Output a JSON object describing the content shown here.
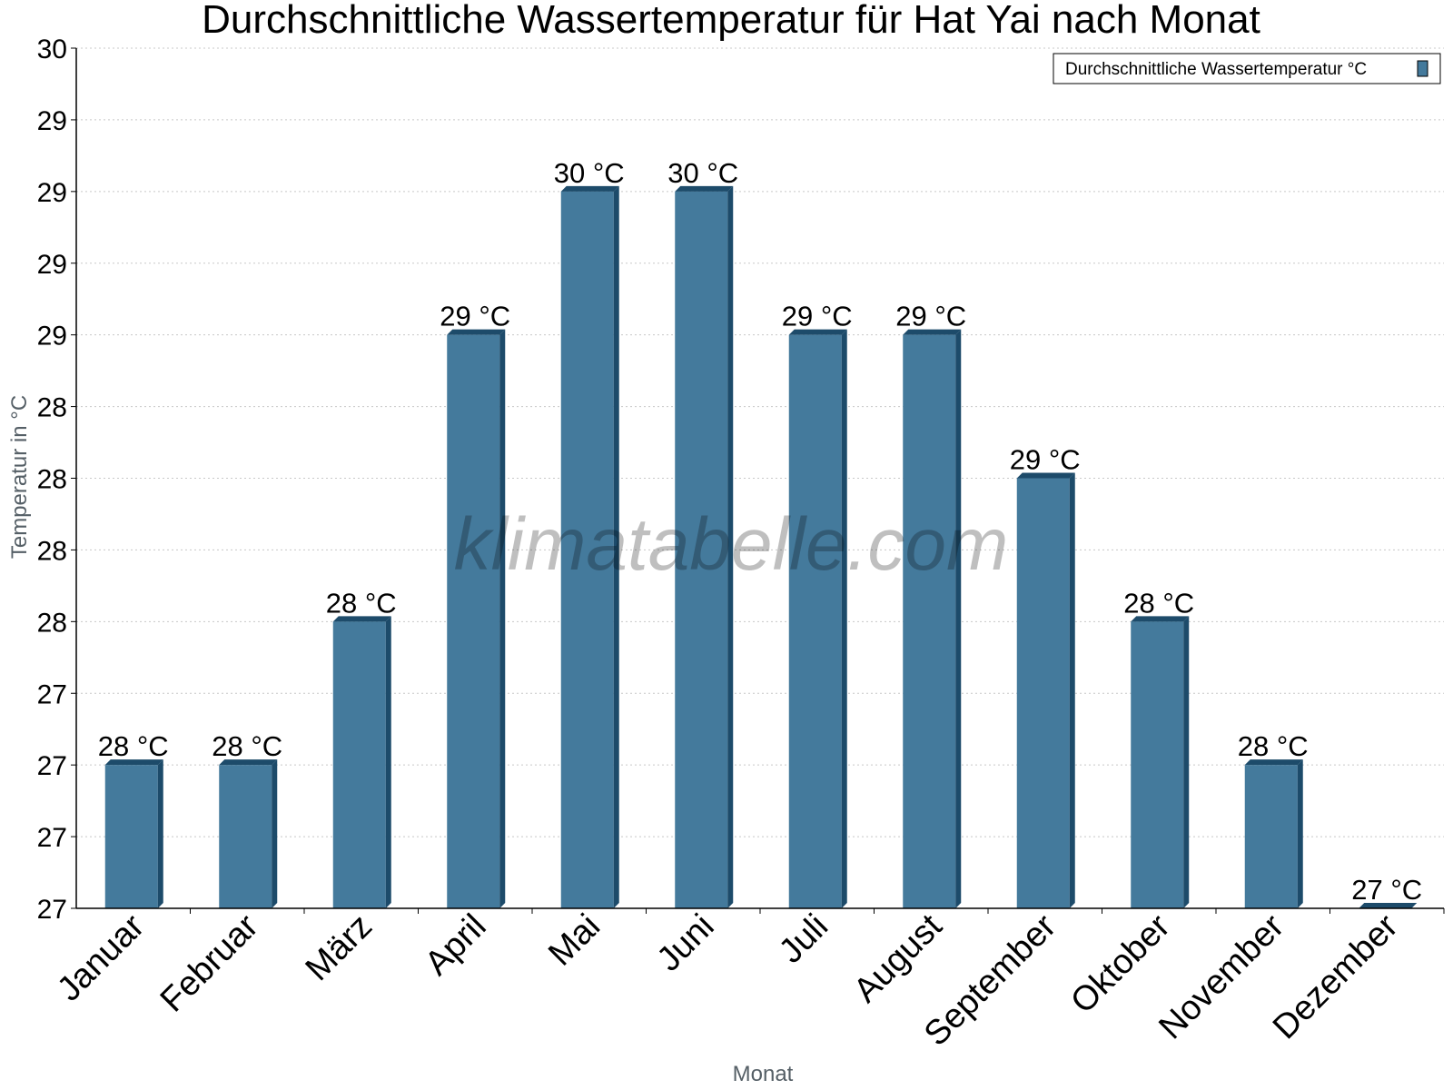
{
  "watermark": "klimatabelle.com",
  "colors": {
    "bar_front": "#447a9c",
    "bar_side": "#1d4b6a",
    "bar_top": "#1d4b6a",
    "grid": "#c8c8c8",
    "axis": "#000000"
  },
  "chart_data": {
    "type": "bar",
    "title": "Durchschnittliche Wassertemperatur für Hat Yai nach Monat",
    "xlabel": "Monat",
    "ylabel": "Temperatur in °C",
    "ylim": [
      27,
      30
    ],
    "yticks": [
      27,
      27.25,
      27.5,
      27.75,
      28,
      28.25,
      28.5,
      28.75,
      29,
      29.25,
      29.5,
      29.75,
      30
    ],
    "ytick_labels": [
      "27",
      "27",
      "27",
      "27",
      "28",
      "28",
      "28",
      "28",
      "29",
      "29",
      "29",
      "29",
      "30"
    ],
    "grid": true,
    "legend_position": "top-right",
    "categories": [
      "Januar",
      "Februar",
      "März",
      "April",
      "Mai",
      "Juni",
      "Juli",
      "August",
      "September",
      "Oktober",
      "November",
      "Dezember"
    ],
    "series": [
      {
        "name": "Durchschnittliche Wassertemperatur °C",
        "values": [
          27.5,
          27.5,
          28,
          29,
          29.5,
          29.5,
          29,
          29,
          28.5,
          28,
          27.5,
          27
        ],
        "labels": [
          "28 °C",
          "28 °C",
          "28 °C",
          "29 °C",
          "30 °C",
          "30 °C",
          "29 °C",
          "29 °C",
          "29 °C",
          "28 °C",
          "28 °C",
          "27 °C"
        ]
      }
    ]
  }
}
